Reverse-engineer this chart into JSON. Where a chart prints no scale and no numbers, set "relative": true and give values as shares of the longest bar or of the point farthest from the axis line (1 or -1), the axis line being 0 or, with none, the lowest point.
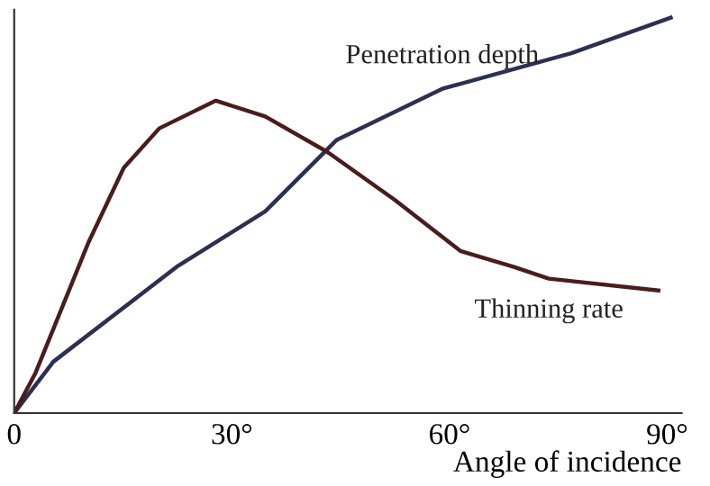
{
  "chart_data": {
    "type": "line",
    "relative": true,
    "xlabel": "Angle of incidence",
    "xlim": [
      0,
      92
    ],
    "xticks": [
      0,
      {
        "value": 30,
        "label": "30°"
      },
      {
        "value": 60,
        "label": "60°"
      },
      {
        "value": 90,
        "label": "90°"
      }
    ],
    "tick_labels": "x",
    "grid": false,
    "legend": false,
    "marker": "none",
    "line_style": "solid",
    "series": [
      {
        "name": "Penetration depth",
        "color": "#2b3050",
        "x": [
          0,
          5.4,
          22.4,
          34.6,
          44.4,
          59,
          76.8,
          90.5
        ],
        "values": [
          0,
          0.13,
          0.37,
          0.51,
          0.69,
          0.82,
          0.91,
          1.0
        ]
      },
      {
        "name": "Thinning rate",
        "color": "#4a1c1c",
        "x": [
          0,
          2.9,
          10.2,
          15.1,
          20,
          27.8,
          34.6,
          43.2,
          52.4,
          61.5,
          68.8,
          73.7,
          88.8
        ],
        "values": [
          0,
          0.1,
          0.43,
          0.62,
          0.72,
          0.79,
          0.75,
          0.66,
          0.54,
          0.41,
          0.37,
          0.34,
          0.31
        ]
      }
    ]
  }
}
